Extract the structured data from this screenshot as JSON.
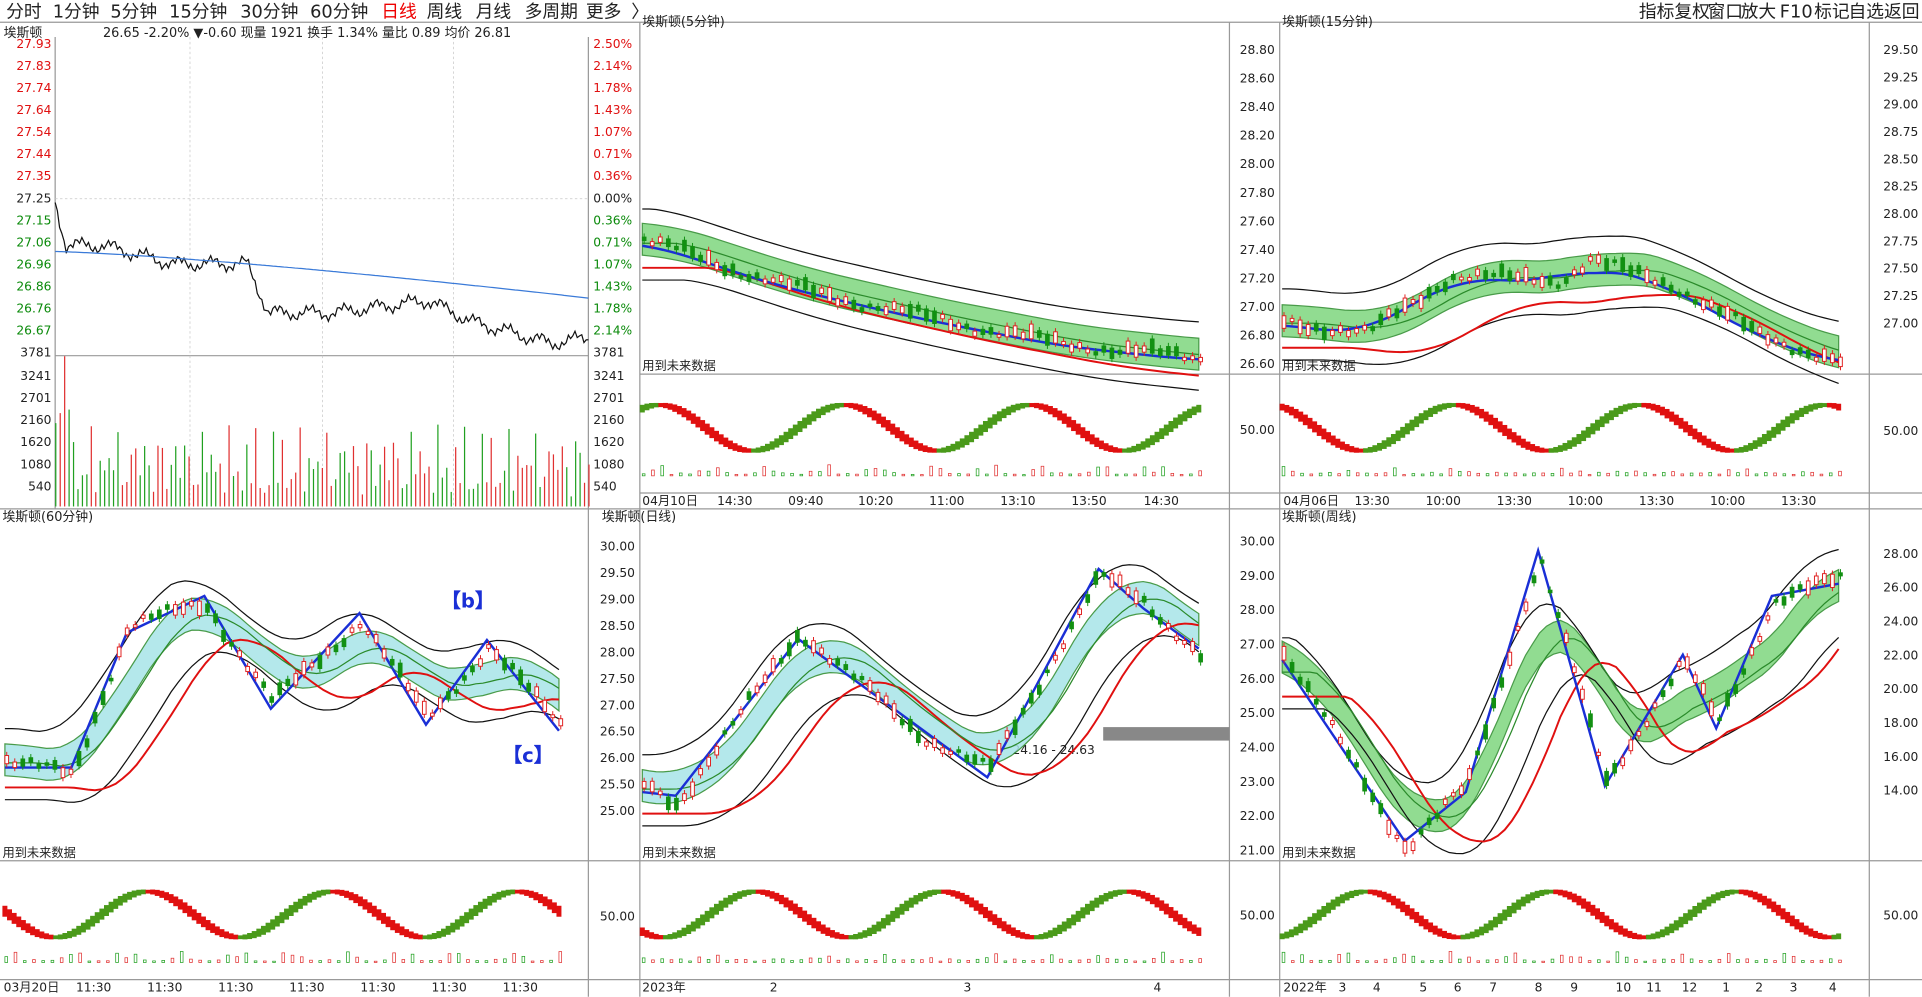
{
  "toolbar": {
    "tabs": [
      "分时",
      "1分钟",
      "5分钟",
      "15分钟",
      "30分钟",
      "60分钟",
      "日线",
      "周线",
      "月线",
      "多周期",
      "更多",
      "〉"
    ],
    "tools": [
      "指标",
      "复权",
      "窗口",
      "放大",
      "F10",
      "标记",
      "自选",
      "返回"
    ]
  },
  "panels": [
    {
      "title": "埃斯顿",
      "info": "26.65 -2.20% ▼-0.60 现量 1921 换手 1.34% 量比 0.89 均价 26.81",
      "y_labels": [
        "27.93",
        "27.83",
        "27.74",
        "27.64",
        "27.54",
        "27.44",
        "27.35",
        "27.25",
        "27.15",
        "27.06",
        "26.96",
        "26.86",
        "26.76",
        "26.67",
        "3781"
      ],
      "y2_labels": [
        "2.50%",
        "2.14%",
        "1.78%",
        "1.43%",
        "1.07%",
        "0.71%",
        "0.36%",
        "0.00%",
        "0.36%",
        "0.71%",
        "1.07%",
        "1.43%",
        "1.78%",
        "2.14%",
        "3781"
      ],
      "vol_labels": [
        "3241",
        "2701",
        "2160",
        "1620",
        "1080",
        "540"
      ],
      "vol2_labels": [
        "3241",
        "2701",
        "2160",
        "1620",
        "1080",
        "540"
      ]
    },
    {
      "title": "埃斯顿(5分钟)",
      "y_labels": [
        "28.80",
        "28.60",
        "28.40",
        "28.20",
        "28.00",
        "27.80",
        "27.60",
        "27.40",
        "27.20",
        "27.00",
        "26.80",
        "26.60"
      ],
      "indicator_label": "50.00",
      "x_labels": [
        "04月10日",
        "14:30",
        "09:40",
        "10:20",
        "11:00",
        "13:10",
        "13:50",
        "14:30"
      ],
      "note": "用到未来数据"
    },
    {
      "title": "埃斯顿(15分钟)",
      "y_labels": [
        "29.50",
        "29.25",
        "29.00",
        "28.75",
        "28.50",
        "28.25",
        "28.00",
        "27.75",
        "27.50",
        "27.25",
        "27.00"
      ],
      "indicator_label": "50.00",
      "x_labels": [
        "04月06日",
        "13:30",
        "10:00",
        "13:30",
        "10:00",
        "13:30",
        "10:00",
        "13:30"
      ],
      "note": "用到未来数据"
    },
    {
      "title": "埃斯顿(60分钟)",
      "y_labels": [
        "30.00",
        "29.50",
        "29.00",
        "28.50",
        "28.00",
        "27.50",
        "27.00",
        "26.50",
        "26.00",
        "25.50",
        "25.00"
      ],
      "indicator_label": "50.00",
      "x_labels": [
        "03月20日",
        "11:30",
        "11:30",
        "11:30",
        "11:30",
        "11:30",
        "11:30",
        "11:30"
      ],
      "note": "用到未来数据",
      "annotations": [
        "【b】",
        "【c】"
      ]
    },
    {
      "title": "埃斯顿(日线)",
      "y_labels": [
        "30.00",
        "29.00",
        "28.00",
        "27.00",
        "26.00",
        "25.00",
        "24.00",
        "23.00",
        "22.00",
        "21.00"
      ],
      "indicator_label": "50.00",
      "x_labels": [
        "2023年",
        "2",
        "3",
        "4"
      ],
      "note": "用到未来数据",
      "annotations": [
        "24.16 - 24.63"
      ]
    },
    {
      "title": "埃斯顿(周线)",
      "y_labels": [
        "28.00",
        "26.00",
        "24.00",
        "22.00",
        "20.00",
        "18.00",
        "16.00",
        "14.00"
      ],
      "indicator_label": "50.00",
      "x_labels": [
        "2022年",
        "3",
        "4",
        "5",
        "6",
        "7",
        "8",
        "9",
        "10",
        "11",
        "12",
        "1",
        "2",
        "3",
        "4"
      ],
      "note": "用到未来数据"
    }
  ]
}
